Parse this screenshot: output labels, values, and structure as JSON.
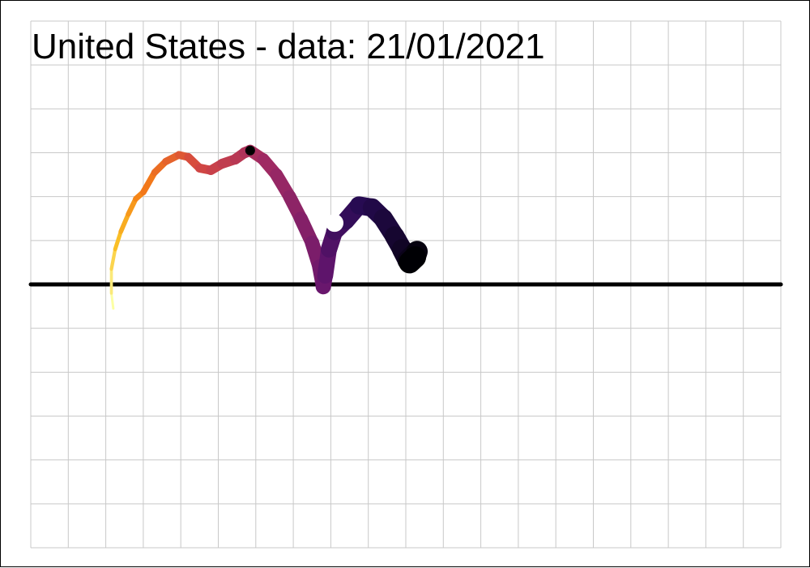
{
  "chart_data": {
    "type": "line",
    "title": "United States  - data: 21/01/2021",
    "xlabel": "",
    "ylabel": "",
    "grid": true,
    "legend": "none",
    "xlim": [
      0,
      20
    ],
    "ylim": [
      -6,
      6
    ],
    "baseline_y": 0,
    "color_scale": "inferno (light yellow = earliest, black = latest)",
    "series": [
      {
        "points": [
          {
            "x": 2.2,
            "y": -0.55
          },
          {
            "x": 2.15,
            "y": -0.2
          },
          {
            "x": 2.15,
            "y": 0.35
          },
          {
            "x": 2.25,
            "y": 0.8
          },
          {
            "x": 2.4,
            "y": 1.2
          },
          {
            "x": 2.6,
            "y": 1.6
          },
          {
            "x": 2.8,
            "y": 1.95
          },
          {
            "x": 3.0,
            "y": 2.1
          },
          {
            "x": 3.3,
            "y": 2.55
          },
          {
            "x": 3.6,
            "y": 2.8
          },
          {
            "x": 3.95,
            "y": 2.95
          },
          {
            "x": 4.2,
            "y": 2.9
          },
          {
            "x": 4.5,
            "y": 2.65
          },
          {
            "x": 4.8,
            "y": 2.6
          },
          {
            "x": 5.1,
            "y": 2.75
          },
          {
            "x": 5.45,
            "y": 2.85
          },
          {
            "x": 5.7,
            "y": 3.0
          },
          {
            "x": 5.85,
            "y": 3.05
          },
          {
            "x": 6.2,
            "y": 2.85
          },
          {
            "x": 6.55,
            "y": 2.5
          },
          {
            "x": 6.9,
            "y": 2.0
          },
          {
            "x": 7.2,
            "y": 1.5
          },
          {
            "x": 7.5,
            "y": 0.95
          },
          {
            "x": 7.7,
            "y": 0.4
          },
          {
            "x": 7.8,
            "y": -0.05
          },
          {
            "x": 7.85,
            "y": 0.2
          },
          {
            "x": 7.95,
            "y": 0.8
          },
          {
            "x": 8.1,
            "y": 1.2
          },
          {
            "x": 8.4,
            "y": 1.45
          },
          {
            "x": 8.75,
            "y": 1.8
          },
          {
            "x": 9.1,
            "y": 1.75
          },
          {
            "x": 9.4,
            "y": 1.5
          },
          {
            "x": 9.7,
            "y": 1.1
          },
          {
            "x": 9.9,
            "y": 0.8
          },
          {
            "x": 10.05,
            "y": 0.55
          },
          {
            "x": 10.3,
            "y": 0.75
          },
          {
            "x": 10.25,
            "y": 0.62
          },
          {
            "x": 10.1,
            "y": 0.5
          }
        ],
        "markers": [
          {
            "x": 5.85,
            "y": 3.05,
            "color": "#000000"
          },
          {
            "x": 8.1,
            "y": 1.4,
            "color": "#ffffff"
          }
        ]
      }
    ]
  }
}
